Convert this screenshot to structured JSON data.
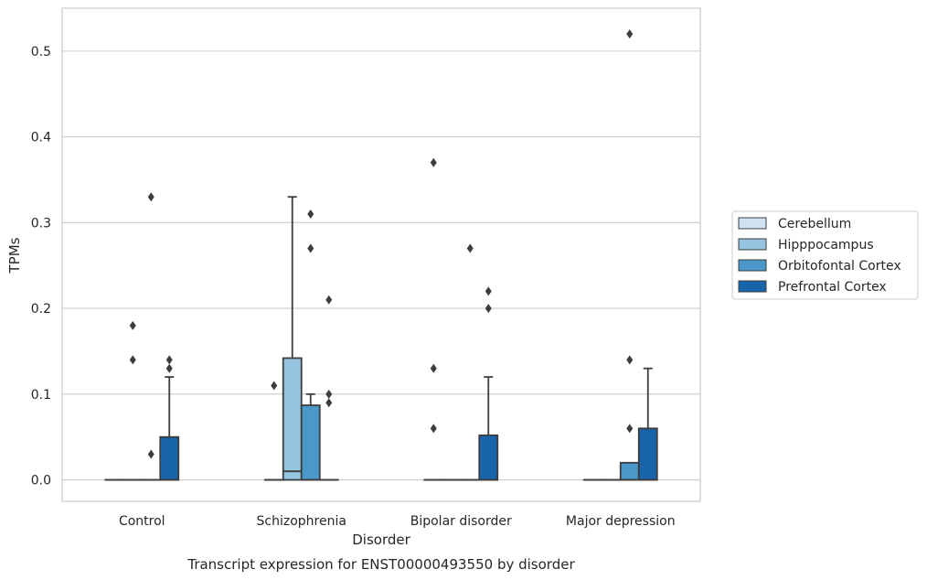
{
  "chart_data": {
    "type": "box",
    "title": "",
    "caption": "Transcript expression for ENST00000493550 by disorder",
    "xlabel": "Disorder",
    "ylabel": "TPMs",
    "ylim": [
      -0.025,
      0.55
    ],
    "yticks": [
      0.0,
      0.1,
      0.2,
      0.3,
      0.4,
      0.5
    ],
    "ytick_labels": [
      "0.0",
      "0.1",
      "0.2",
      "0.3",
      "0.4",
      "0.5"
    ],
    "grid": "horizontal",
    "legend_position": "right",
    "categories": [
      "Control",
      "Schizophrenia",
      "Bipolar disorder",
      "Major depression"
    ],
    "series": [
      {
        "name": "Cerebellum",
        "color": "#d0e1f2",
        "boxes": [
          {
            "q1": 0.0,
            "median": 0.0,
            "q3": 0.0,
            "whisker_low": 0.0,
            "whisker_high": 0.0,
            "outliers": []
          },
          {
            "q1": 0.0,
            "median": 0.0,
            "q3": 0.0,
            "whisker_low": 0.0,
            "whisker_high": 0.0,
            "outliers": [
              0.11
            ]
          },
          {
            "q1": 0.0,
            "median": 0.0,
            "q3": 0.0,
            "whisker_low": 0.0,
            "whisker_high": 0.0,
            "outliers": [
              0.06,
              0.13,
              0.37
            ]
          },
          {
            "q1": 0.0,
            "median": 0.0,
            "q3": 0.0,
            "whisker_low": 0.0,
            "whisker_high": 0.0,
            "outliers": []
          }
        ]
      },
      {
        "name": "Hipppocampus",
        "color": "#94c4df",
        "boxes": [
          {
            "q1": 0.0,
            "median": 0.0,
            "q3": 0.0,
            "whisker_low": 0.0,
            "whisker_high": 0.0,
            "outliers": [
              0.14,
              0.18
            ]
          },
          {
            "q1": 0.0,
            "median": 0.01,
            "q3": 0.142,
            "whisker_low": 0.0,
            "whisker_high": 0.33,
            "outliers": []
          },
          {
            "q1": 0.0,
            "median": 0.0,
            "q3": 0.0,
            "whisker_low": 0.0,
            "whisker_high": 0.0,
            "outliers": []
          },
          {
            "q1": 0.0,
            "median": 0.0,
            "q3": 0.0,
            "whisker_low": 0.0,
            "whisker_high": 0.0,
            "outliers": []
          }
        ]
      },
      {
        "name": "Orbitofontal Cortex",
        "color": "#4a98c9",
        "boxes": [
          {
            "q1": 0.0,
            "median": 0.0,
            "q3": 0.0,
            "whisker_low": 0.0,
            "whisker_high": 0.0,
            "outliers": [
              0.03,
              0.33
            ]
          },
          {
            "q1": 0.0,
            "median": 0.0,
            "q3": 0.087,
            "whisker_low": 0.0,
            "whisker_high": 0.1,
            "outliers": [
              0.27,
              0.31
            ]
          },
          {
            "q1": 0.0,
            "median": 0.0,
            "q3": 0.0,
            "whisker_low": 0.0,
            "whisker_high": 0.0,
            "outliers": [
              0.27
            ]
          },
          {
            "q1": 0.0,
            "median": 0.0,
            "q3": 0.02,
            "whisker_low": 0.0,
            "whisker_high": 0.02,
            "outliers": [
              0.06,
              0.14,
              0.52
            ]
          }
        ]
      },
      {
        "name": "Prefrontal Cortex",
        "color": "#1764ab",
        "boxes": [
          {
            "q1": 0.0,
            "median": 0.0,
            "q3": 0.05,
            "whisker_low": 0.0,
            "whisker_high": 0.12,
            "outliers": [
              0.13,
              0.14
            ]
          },
          {
            "q1": 0.0,
            "median": 0.0,
            "q3": 0.0,
            "whisker_low": 0.0,
            "whisker_high": 0.0,
            "outliers": [
              0.09,
              0.1,
              0.21
            ]
          },
          {
            "q1": 0.0,
            "median": 0.0,
            "q3": 0.052,
            "whisker_low": 0.0,
            "whisker_high": 0.12,
            "outliers": [
              0.2,
              0.22
            ]
          },
          {
            "q1": 0.0,
            "median": 0.0,
            "q3": 0.06,
            "whisker_low": 0.0,
            "whisker_high": 0.13,
            "outliers": []
          }
        ]
      }
    ]
  }
}
